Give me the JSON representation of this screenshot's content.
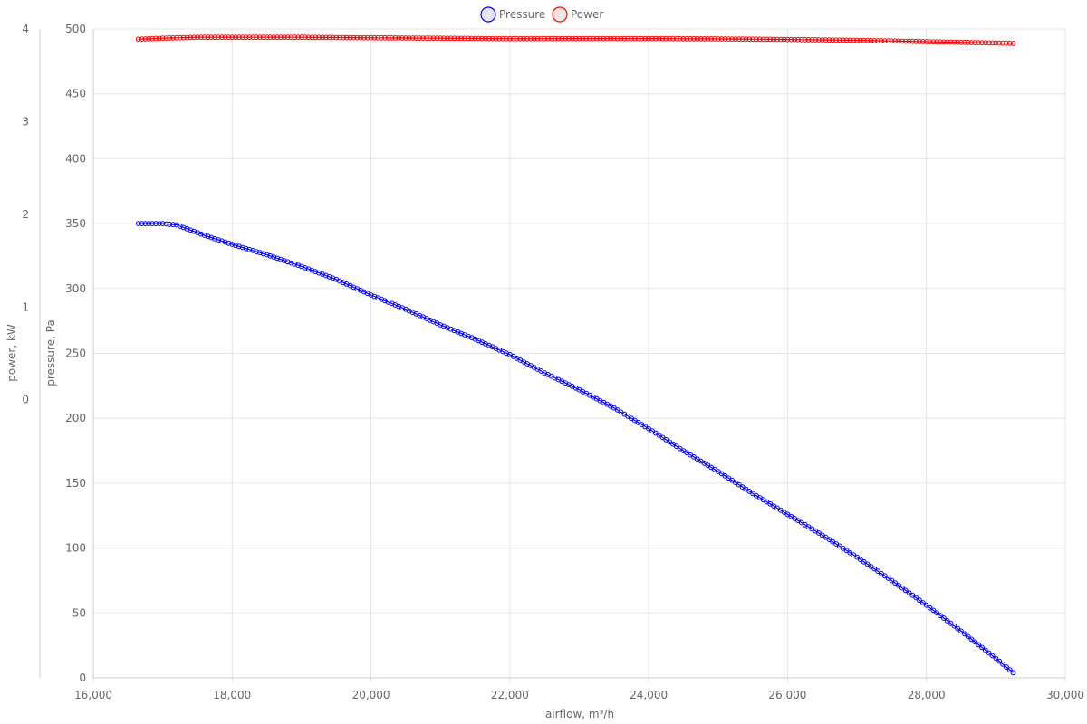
{
  "chart_data": {
    "type": "scatter",
    "x_label": "airflow, m³/h",
    "y_left_outer_label": "power, kW",
    "y_left_inner_label": "pressure, Pa",
    "xlim": [
      16000,
      30000
    ],
    "x_ticks": [
      "16,000",
      "18,000",
      "20,000",
      "22,000",
      "24,000",
      "26,000",
      "28,000",
      "30,000"
    ],
    "x_tick_values": [
      16000,
      18000,
      20000,
      22000,
      24000,
      26000,
      28000,
      30000
    ],
    "pressure_axis": {
      "ylim": [
        0,
        500
      ],
      "ticks": [
        "0",
        "50",
        "100",
        "150",
        "200",
        "250",
        "300",
        "350",
        "400",
        "450",
        "500"
      ],
      "tick_values": [
        0,
        50,
        100,
        150,
        200,
        250,
        300,
        350,
        400,
        450,
        500
      ]
    },
    "power_axis": {
      "ylim": [
        -3,
        4
      ],
      "ticks": [
        "0",
        "1",
        "2",
        "3",
        "4"
      ],
      "tick_values": [
        0,
        1,
        2,
        3,
        4
      ]
    },
    "grid": true,
    "legend_position": "top-center",
    "series": [
      {
        "name": "Pressure",
        "axis": "pressure",
        "color": "#0000ff",
        "points": [
          [
            16650,
            350
          ],
          [
            16800,
            350
          ],
          [
            17000,
            350
          ],
          [
            17200,
            349
          ],
          [
            17400,
            345
          ],
          [
            17600,
            341
          ],
          [
            18000,
            334
          ],
          [
            18500,
            326
          ],
          [
            19000,
            317
          ],
          [
            19500,
            307
          ],
          [
            20000,
            295
          ],
          [
            20500,
            284
          ],
          [
            21000,
            272
          ],
          [
            21500,
            261
          ],
          [
            22000,
            249
          ],
          [
            22500,
            235
          ],
          [
            23000,
            222
          ],
          [
            23500,
            208
          ],
          [
            24000,
            192
          ],
          [
            24500,
            175
          ],
          [
            25000,
            159
          ],
          [
            25500,
            142
          ],
          [
            26000,
            126
          ],
          [
            26500,
            110
          ],
          [
            27000,
            93
          ],
          [
            27500,
            75
          ],
          [
            28000,
            56
          ],
          [
            28500,
            36
          ],
          [
            29000,
            15
          ],
          [
            29250,
            4
          ]
        ]
      },
      {
        "name": "Power",
        "axis": "power",
        "color": "#ff0000",
        "points": [
          [
            16650,
            3.89
          ],
          [
            17000,
            3.9
          ],
          [
            17500,
            3.91
          ],
          [
            18000,
            3.91
          ],
          [
            19000,
            3.91
          ],
          [
            20000,
            3.905
          ],
          [
            21000,
            3.9
          ],
          [
            22000,
            3.895
          ],
          [
            23000,
            3.897
          ],
          [
            24000,
            3.897
          ],
          [
            25000,
            3.893
          ],
          [
            26000,
            3.887
          ],
          [
            27000,
            3.878
          ],
          [
            28000,
            3.863
          ],
          [
            29250,
            3.845
          ]
        ]
      }
    ]
  }
}
